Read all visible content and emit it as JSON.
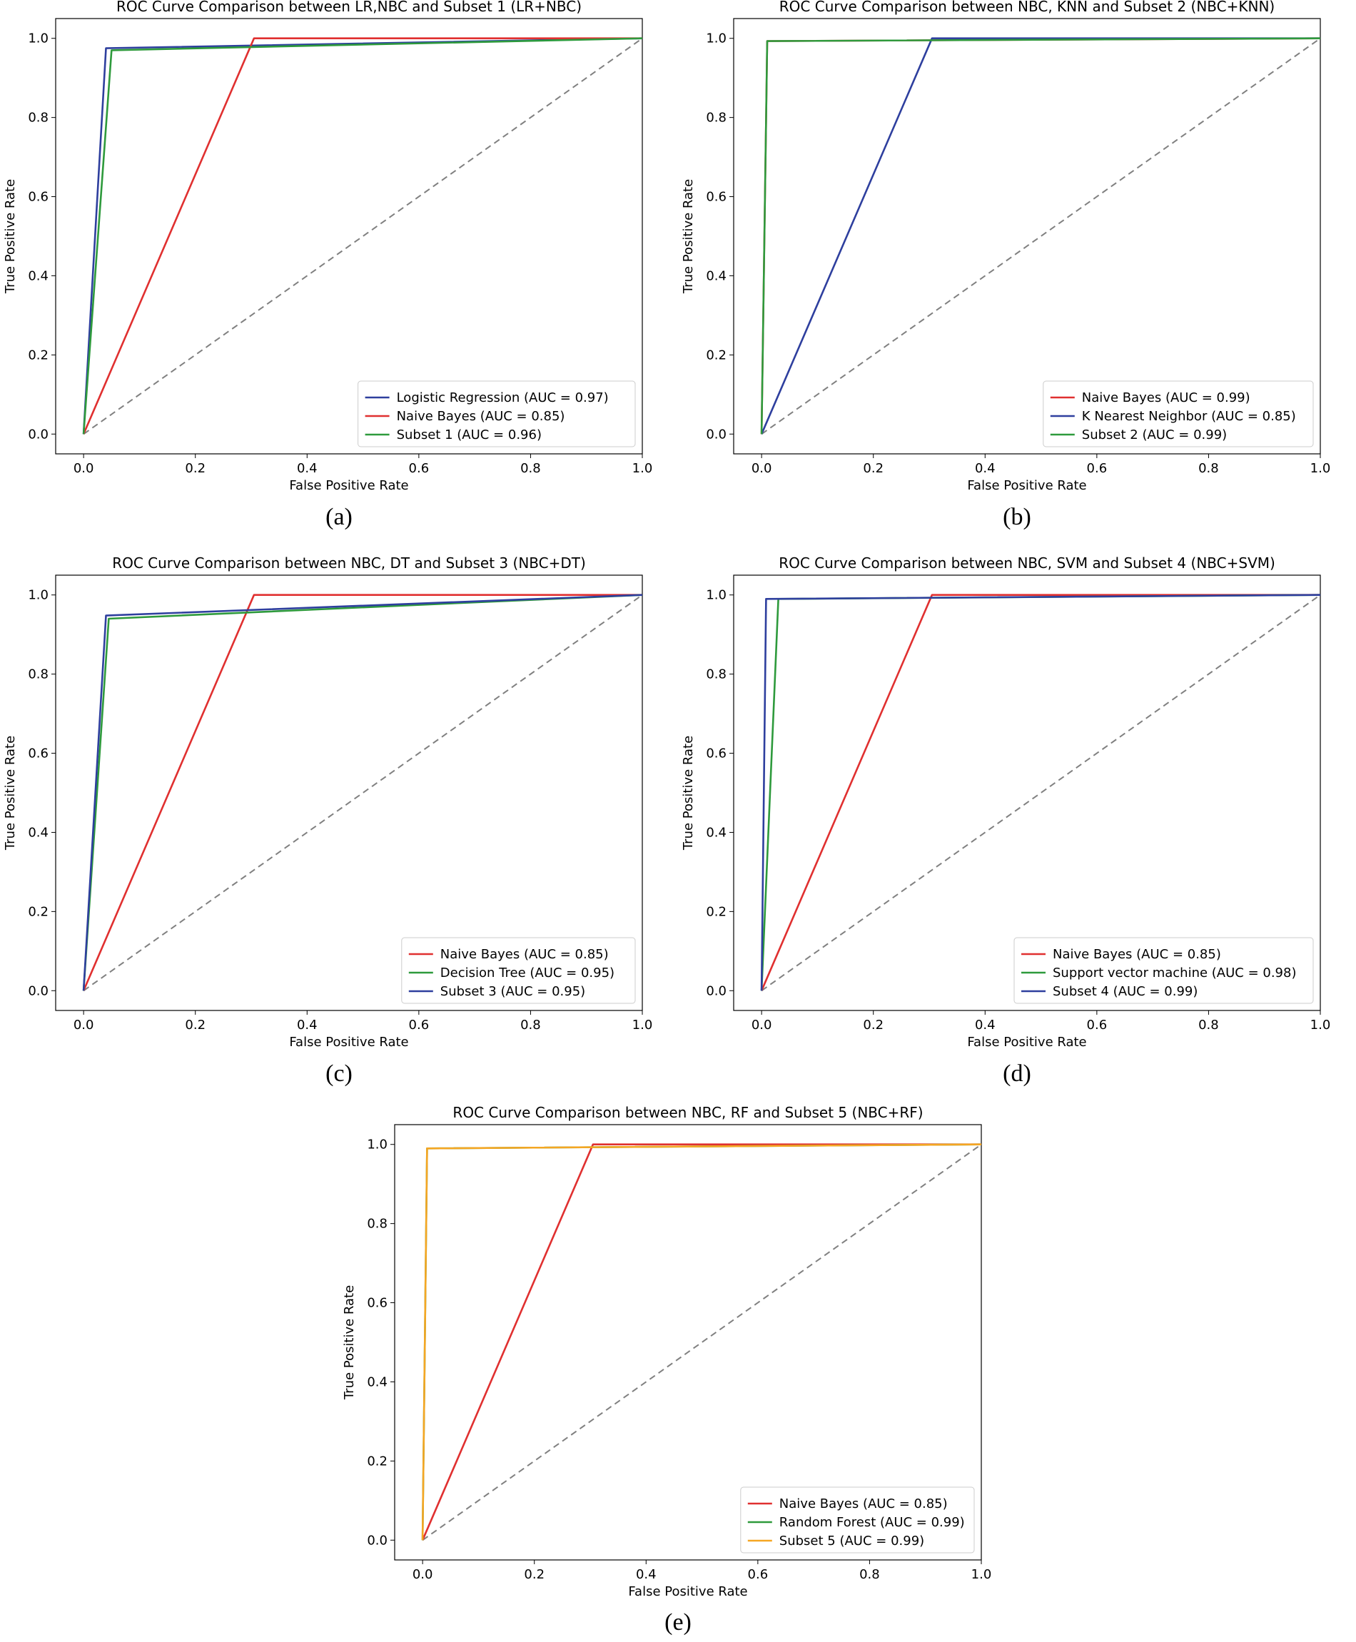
{
  "chart_data": [
    {
      "type": "line",
      "panel_id": "a",
      "caption": "(a)",
      "title": "ROC Curve Comparison between LR,NBC and Subset 1 (LR+NBC)",
      "xlabel": "False Positive Rate",
      "ylabel": "True Positive Rate",
      "xlim": [
        -0.05,
        1.0
      ],
      "ylim": [
        -0.05,
        1.05
      ],
      "xticks": [
        0.0,
        0.2,
        0.4,
        0.6,
        0.8,
        1.0
      ],
      "xtick_labels": [
        "0.0",
        "0.2",
        "0.4",
        "0.6",
        "0.8",
        "1.0"
      ],
      "yticks": [
        0.0,
        0.2,
        0.4,
        0.6,
        0.8,
        1.0
      ],
      "ytick_labels": [
        "0.0",
        "0.2",
        "0.4",
        "0.6",
        "0.8",
        "1.0"
      ],
      "legend_position": "lower-right",
      "diagonal": true,
      "series": [
        {
          "name": "Logistic Regression (AUC = 0.97)",
          "color": "#2e3f9e",
          "x": [
            0,
            0.04,
            1.0
          ],
          "y": [
            0,
            0.975,
            1.0
          ]
        },
        {
          "name": "Naive Bayes (AUC = 0.85)",
          "color": "#e03030",
          "x": [
            0,
            0.305,
            1.0
          ],
          "y": [
            0,
            1.0,
            1.0
          ]
        },
        {
          "name": "Subset 1 (AUC = 0.96)",
          "color": "#2e9a3c",
          "x": [
            0,
            0.05,
            1.0
          ],
          "y": [
            0,
            0.97,
            1.0
          ]
        }
      ]
    },
    {
      "type": "line",
      "panel_id": "b",
      "caption": "(b)",
      "title": "ROC Curve Comparison between NBC, KNN and Subset 2 (NBC+KNN)",
      "xlabel": "False Positive Rate",
      "ylabel": "True Positive Rate",
      "xlim": [
        -0.05,
        1.0
      ],
      "ylim": [
        -0.05,
        1.05
      ],
      "xticks": [
        0.0,
        0.2,
        0.4,
        0.6,
        0.8,
        1.0
      ],
      "xtick_labels": [
        "0.0",
        "0.2",
        "0.4",
        "0.6",
        "0.8",
        "1.0"
      ],
      "yticks": [
        0.0,
        0.2,
        0.4,
        0.6,
        0.8,
        1.0
      ],
      "ytick_labels": [
        "0.0",
        "0.2",
        "0.4",
        "0.6",
        "0.8",
        "1.0"
      ],
      "legend_position": "lower-right",
      "diagonal": true,
      "series": [
        {
          "name": "Naive Bayes (AUC = 0.99)",
          "color": "#e03030",
          "x": [
            0,
            0.01,
            1.0
          ],
          "y": [
            0,
            0.993,
            1.0
          ]
        },
        {
          "name": "K Nearest Neighbor (AUC = 0.85)",
          "color": "#2e3f9e",
          "x": [
            0,
            0.305,
            1.0
          ],
          "y": [
            0,
            1.0,
            1.0
          ]
        },
        {
          "name": "Subset 2 (AUC = 0.99)",
          "color": "#2e9a3c",
          "x": [
            0,
            0.01,
            1.0
          ],
          "y": [
            0,
            0.993,
            1.0
          ]
        }
      ]
    },
    {
      "type": "line",
      "panel_id": "c",
      "caption": "(c)",
      "title": "ROC Curve Comparison between NBC, DT and Subset 3 (NBC+DT)",
      "xlabel": "False Positive Rate",
      "ylabel": "True Positive Rate",
      "xlim": [
        -0.05,
        1.0
      ],
      "ylim": [
        -0.05,
        1.05
      ],
      "xticks": [
        0.0,
        0.2,
        0.4,
        0.6,
        0.8,
        1.0
      ],
      "xtick_labels": [
        "0.0",
        "0.2",
        "0.4",
        "0.6",
        "0.8",
        "1.0"
      ],
      "yticks": [
        0.0,
        0.2,
        0.4,
        0.6,
        0.8,
        1.0
      ],
      "ytick_labels": [
        "0.0",
        "0.2",
        "0.4",
        "0.6",
        "0.8",
        "1.0"
      ],
      "legend_position": "lower-right",
      "diagonal": true,
      "series": [
        {
          "name": "Naive Bayes (AUC = 0.85)",
          "color": "#e03030",
          "x": [
            0,
            0.305,
            1.0
          ],
          "y": [
            0,
            1.0,
            1.0
          ]
        },
        {
          "name": "Decision Tree (AUC = 0.95)",
          "color": "#2e9a3c",
          "x": [
            0,
            0.045,
            1.0
          ],
          "y": [
            0,
            0.94,
            1.0
          ]
        },
        {
          "name": "Subset 3 (AUC = 0.95)",
          "color": "#2e3f9e",
          "x": [
            0,
            0.04,
            1.0
          ],
          "y": [
            0,
            0.948,
            1.0
          ]
        }
      ]
    },
    {
      "type": "line",
      "panel_id": "d",
      "caption": "(d)",
      "title": "ROC Curve Comparison between NBC, SVM and Subset 4 (NBC+SVM)",
      "xlabel": "False Positive Rate",
      "ylabel": "True Positive Rate",
      "xlim": [
        -0.05,
        1.0
      ],
      "ylim": [
        -0.05,
        1.05
      ],
      "xticks": [
        0.0,
        0.2,
        0.4,
        0.6,
        0.8,
        1.0
      ],
      "xtick_labels": [
        "0.0",
        "0.2",
        "0.4",
        "0.6",
        "0.8",
        "1.0"
      ],
      "yticks": [
        0.0,
        0.2,
        0.4,
        0.6,
        0.8,
        1.0
      ],
      "ytick_labels": [
        "0.0",
        "0.2",
        "0.4",
        "0.6",
        "0.8",
        "1.0"
      ],
      "legend_position": "lower-right",
      "diagonal": true,
      "series": [
        {
          "name": "Naive Bayes (AUC = 0.85)",
          "color": "#e03030",
          "x": [
            0,
            0.305,
            1.0
          ],
          "y": [
            0,
            1.0,
            1.0
          ]
        },
        {
          "name": "Support vector machine (AUC = 0.98)",
          "color": "#2e9a3c",
          "x": [
            0,
            0.03,
            1.0
          ],
          "y": [
            0,
            0.99,
            1.0
          ]
        },
        {
          "name": "Subset 4 (AUC = 0.99)",
          "color": "#2e3f9e",
          "x": [
            0,
            0.008,
            1.0
          ],
          "y": [
            0,
            0.99,
            1.0
          ]
        }
      ]
    },
    {
      "type": "line",
      "panel_id": "e",
      "caption": "(e)",
      "title": "ROC Curve Comparison between NBC, RF and Subset 5 (NBC+RF)",
      "xlabel": "False Positive Rate",
      "ylabel": "True Positive Rate",
      "xlim": [
        -0.05,
        1.0
      ],
      "ylim": [
        -0.05,
        1.05
      ],
      "xticks": [
        0.0,
        0.2,
        0.4,
        0.6,
        0.8,
        1.0
      ],
      "xtick_labels": [
        "0.0",
        "0.2",
        "0.4",
        "0.6",
        "0.8",
        "1.0"
      ],
      "yticks": [
        0.0,
        0.2,
        0.4,
        0.6,
        0.8,
        1.0
      ],
      "ytick_labels": [
        "0.0",
        "0.2",
        "0.4",
        "0.6",
        "0.8",
        "1.0"
      ],
      "legend_position": "lower-right",
      "diagonal": true,
      "series": [
        {
          "name": "Naive Bayes (AUC = 0.85)",
          "color": "#e03030",
          "x": [
            0,
            0.305,
            1.0
          ],
          "y": [
            0,
            1.0,
            1.0
          ]
        },
        {
          "name": "Random Forest (AUC = 0.99)",
          "color": "#2e9a3c",
          "x": [
            0,
            0.008,
            1.0
          ],
          "y": [
            0,
            0.99,
            1.0
          ]
        },
        {
          "name": "Subset 5 (AUC = 0.99)",
          "color": "#f5a623",
          "x": [
            0,
            0.008,
            1.0
          ],
          "y": [
            0,
            0.99,
            1.0
          ]
        }
      ]
    }
  ]
}
